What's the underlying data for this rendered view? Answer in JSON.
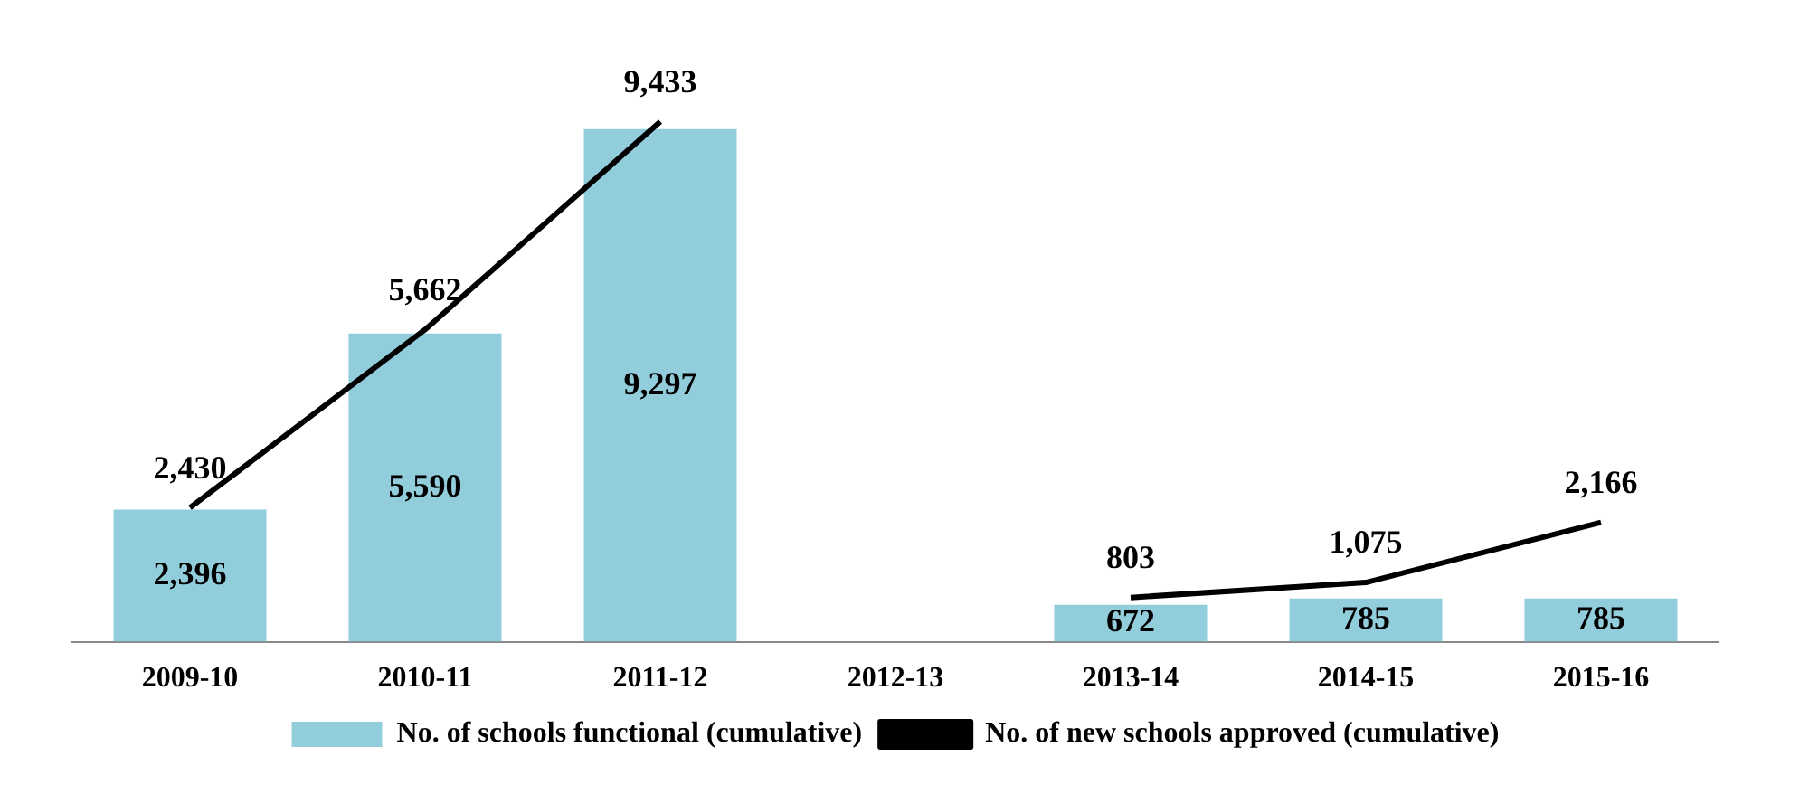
{
  "chart_data": {
    "type": "bar",
    "categories": [
      "2009-10",
      "2010-11",
      "2011-12",
      "2012-13",
      "2013-14",
      "2014-15",
      "2015-16"
    ],
    "series": [
      {
        "name": "No. of schools functional (cumulative)",
        "color": "#92cddc",
        "values": [
          2396,
          5590,
          9297,
          null,
          672,
          785,
          785
        ],
        "value_labels": [
          "2,396",
          "5,590",
          "9,297",
          null,
          "672",
          "785",
          "785"
        ]
      },
      {
        "name": "No. of new schools approved (cumulative)",
        "type": "line",
        "color": "#000000",
        "values": [
          2430,
          5662,
          9433,
          null,
          803,
          1075,
          2166
        ],
        "value_labels": [
          "2,430",
          "5,662",
          "9,433",
          null,
          "803",
          "1,075",
          "2,166"
        ]
      }
    ],
    "tick_labels": "x",
    "grid": false,
    "legend": "bottom",
    "data_labels": true,
    "marker": "none"
  }
}
